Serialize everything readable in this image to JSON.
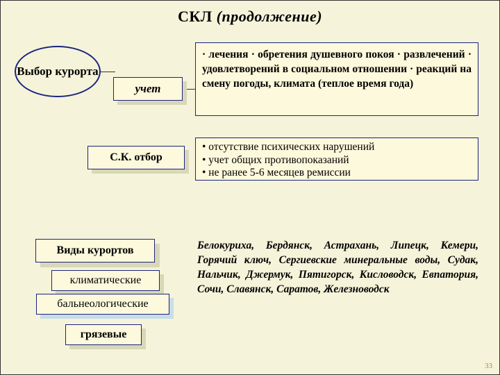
{
  "title_main": "СКЛ",
  "title_cont": "(продолжение)",
  "oval": "Выбор курорта",
  "uchet": "учет",
  "otbor": "С.К. отбор",
  "box1": "· лечения · обретения душевного покоя · развлечений · удовлетворений в социальном отношении · реакций на смену погоды, климата (теплое время года)",
  "box2_l1": "• отсутствие психических нарушений",
  "box2_l2": "• учет общих противопоказаний",
  "box2_l3": "• не ранее 5-6 месяцев ремиссии",
  "vidy": "Виды курортов",
  "klim": "климатические",
  "baln": "бальнеологические",
  "gryaz": "грязевые",
  "cities": "Белокуриха, Бердянск, Астрахань, Липецк, Кемери, Горячий ключ, Сергиевские минеральные воды, Судак, Нальчик, Джермук, Пятигорск, Кисловодск, Евпатория, Сочи, Славянск, Саратов, Железноводск",
  "pagenum": "33",
  "colors": {
    "background": "#f5f3d9",
    "box_fill": "#fdf9dc",
    "border": "#1a237e",
    "shadow": "#d8d8b8",
    "shadow_blue": "#c7dde8",
    "pagenum": "#b08838"
  }
}
